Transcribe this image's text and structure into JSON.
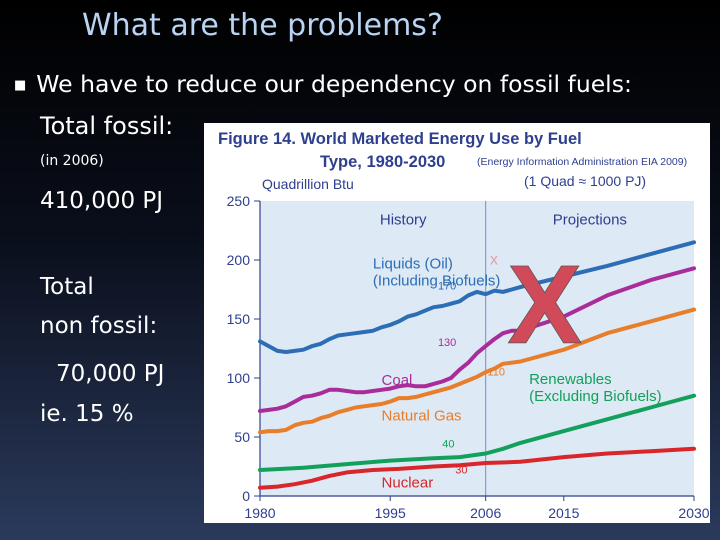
{
  "slide": {
    "title": "What are the problems?",
    "bullet": "We have to reduce our dependency on fossil fuels:",
    "text_lines": [
      "Total fossil:",
      "(in 2006)",
      "410,000 PJ",
      "Total",
      "non fossil:",
      "70,000 PJ",
      "ie. 15 %"
    ]
  },
  "chart_data": {
    "type": "line",
    "title_line1": "Figure 14.  World Marketed Energy Use by Fuel",
    "title_line2": "Type, 1980-2030",
    "source": "(Energy Information Administration EIA 2009)",
    "ylabel": "Quadrillion Btu",
    "unit_note": "(1 Quad ≈ 1000 PJ)",
    "region_labels": [
      "History",
      "Projections"
    ],
    "xlim": [
      1980,
      2030
    ],
    "ylim": [
      0,
      250
    ],
    "xticks": [
      1980,
      1995,
      2006,
      2015,
      2030
    ],
    "yticks": [
      0,
      50,
      100,
      150,
      200,
      250
    ],
    "divider_x": 2006,
    "overlay_marks": [
      "x",
      "X"
    ],
    "colors": {
      "liquids": "#2c6db5",
      "coal": "#a92c9a",
      "natural_gas": "#e87d2a",
      "renewables": "#13a05a",
      "nuclear": "#d8262b",
      "axis": "#2e3f8f",
      "plot_bg": "#dde9f4"
    },
    "series": [
      {
        "name": "Liquids (Oil)\n(Including Biofuels)",
        "key": "liquids",
        "end_label": "170",
        "x": [
          1980,
          1981,
          1982,
          1983,
          1984,
          1985,
          1986,
          1987,
          1988,
          1989,
          1990,
          1991,
          1992,
          1993,
          1994,
          1995,
          1996,
          1997,
          1998,
          1999,
          2000,
          2001,
          2002,
          2003,
          2004,
          2005,
          2006,
          2007,
          2008,
          2009,
          2010,
          2015,
          2020,
          2025,
          2030
        ],
        "values": [
          131,
          127,
          123,
          122,
          123,
          124,
          127,
          129,
          133,
          136,
          137,
          138,
          139,
          140,
          143,
          145,
          148,
          152,
          154,
          157,
          160,
          161,
          163,
          165,
          170,
          173,
          171,
          174,
          173,
          175,
          177,
          186,
          195,
          205,
          215
        ]
      },
      {
        "name": "Coal",
        "key": "coal",
        "end_label": "130",
        "x": [
          1980,
          1981,
          1982,
          1983,
          1984,
          1985,
          1986,
          1987,
          1988,
          1989,
          1990,
          1991,
          1992,
          1993,
          1994,
          1995,
          1996,
          1997,
          1998,
          1999,
          2000,
          2001,
          2002,
          2003,
          2004,
          2005,
          2006,
          2007,
          2008,
          2009,
          2010,
          2015,
          2020,
          2025,
          2030
        ],
        "values": [
          72,
          73,
          74,
          76,
          80,
          84,
          85,
          87,
          90,
          90,
          89,
          88,
          88,
          89,
          90,
          91,
          93,
          94,
          93,
          93,
          95,
          97,
          100,
          107,
          113,
          121,
          127,
          133,
          138,
          140,
          140,
          152,
          170,
          183,
          193
        ]
      },
      {
        "name": "Natural Gas",
        "key": "natural_gas",
        "end_label": "110",
        "x": [
          1980,
          1981,
          1982,
          1983,
          1984,
          1985,
          1986,
          1987,
          1988,
          1989,
          1990,
          1991,
          1992,
          1993,
          1994,
          1995,
          1996,
          1997,
          1998,
          1999,
          2000,
          2001,
          2002,
          2003,
          2004,
          2005,
          2006,
          2007,
          2008,
          2009,
          2010,
          2015,
          2020,
          2025,
          2030
        ],
        "values": [
          54,
          55,
          55,
          56,
          60,
          62,
          63,
          66,
          68,
          71,
          73,
          75,
          76,
          77,
          78,
          80,
          83,
          83,
          84,
          86,
          88,
          90,
          92,
          95,
          98,
          101,
          105,
          108,
          112,
          113,
          114,
          124,
          138,
          148,
          158
        ]
      },
      {
        "name": "Renewables\n(Excluding Biofuels)",
        "key": "renewables",
        "end_label": "40",
        "x": [
          1980,
          1985,
          1990,
          1995,
          2000,
          2003,
          2006,
          2008,
          2010,
          2015,
          2020,
          2025,
          2030
        ],
        "values": [
          22,
          24,
          27,
          30,
          32,
          33,
          36,
          40,
          45,
          55,
          65,
          75,
          85
        ]
      },
      {
        "name": "Nuclear",
        "key": "nuclear",
        "end_label": "30",
        "x": [
          1980,
          1982,
          1984,
          1986,
          1988,
          1990,
          1993,
          1996,
          2000,
          2003,
          2006,
          2010,
          2015,
          2020,
          2025,
          2030
        ],
        "values": [
          7,
          8,
          10,
          13,
          17,
          20,
          22,
          23,
          25,
          26,
          28,
          29,
          33,
          36,
          38,
          40
        ]
      }
    ]
  }
}
